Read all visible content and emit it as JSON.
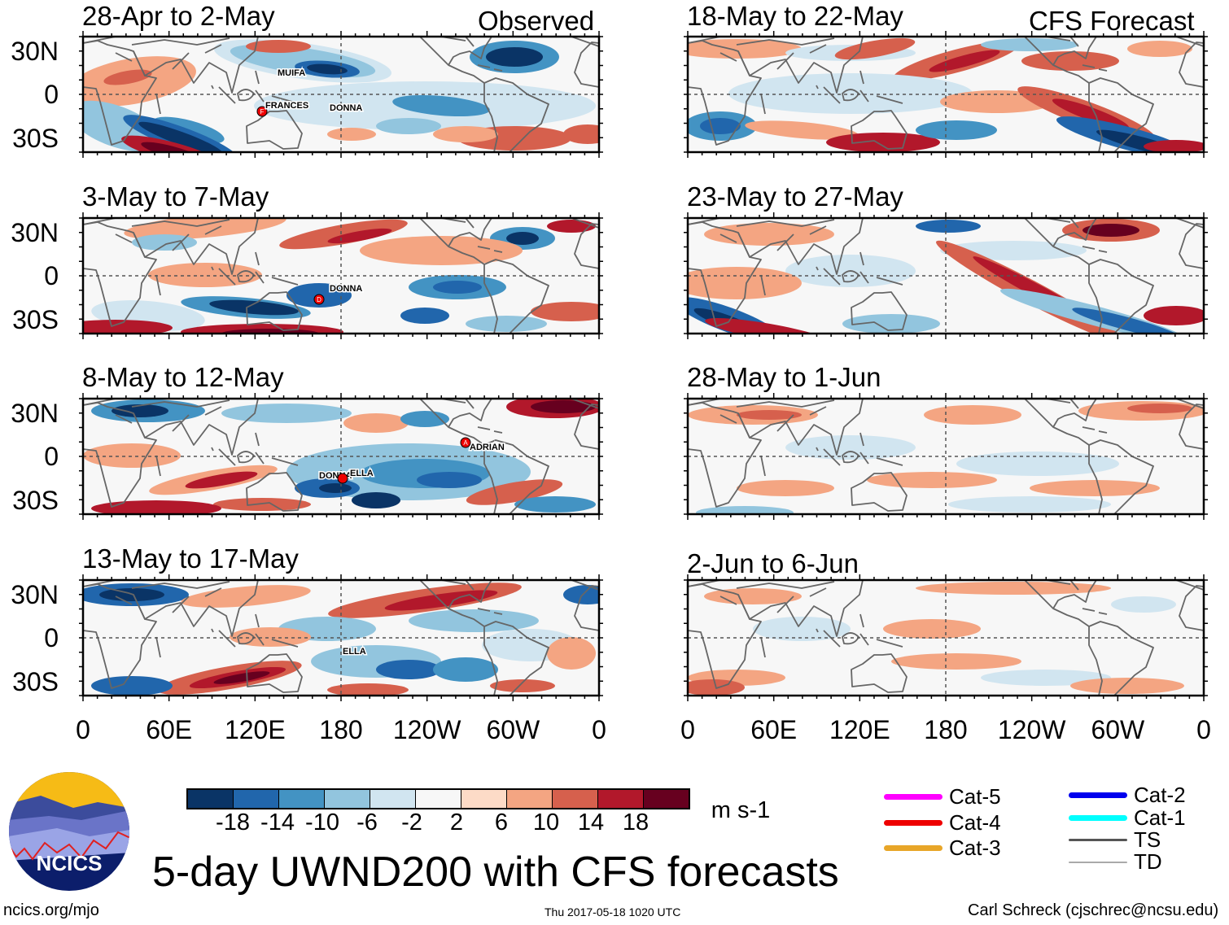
{
  "observed_label": "Observed",
  "forecast_label": "CFS Forecast",
  "panels": [
    {
      "title": "28-Apr to 2-May",
      "storms": [
        {
          "name": "MUIFA"
        },
        {
          "name": "FRANCES",
          "marker": "F"
        },
        {
          "name": "DONNA"
        }
      ]
    },
    {
      "title": "3-May to 7-May",
      "storms": [
        {
          "name": "DONNA",
          "marker": "D"
        }
      ]
    },
    {
      "title": "8-May to 12-May",
      "storms": [
        {
          "name": "ADRIAN",
          "marker": "A"
        },
        {
          "name": "DONNA"
        },
        {
          "name": "ELLA"
        }
      ]
    },
    {
      "title": "13-May to 17-May",
      "storms": [
        {
          "name": "ELLA"
        }
      ]
    },
    {
      "title": "18-May to 22-May"
    },
    {
      "title": "23-May to 27-May"
    },
    {
      "title": "28-May to 1-Jun"
    },
    {
      "title": "2-Jun to 6-Jun"
    }
  ],
  "lat_labels": [
    "30N",
    "0",
    "30S"
  ],
  "lon_labels": [
    "0",
    "60E",
    "120E",
    "180",
    "120W",
    "60W",
    "0"
  ],
  "colorbar": {
    "colors": [
      "#0a3466",
      "#2166ac",
      "#4393c3",
      "#92c5de",
      "#d1e5f0",
      "#f7f7f7",
      "#fddbc7",
      "#f4a582",
      "#d6604d",
      "#b2182b",
      "#67001f"
    ],
    "labels": [
      "-18",
      "-14",
      "-10",
      "-6",
      "-2",
      "2",
      "6",
      "10",
      "14",
      "18"
    ],
    "units": "m s-1"
  },
  "legend": [
    {
      "label": "Cat-5",
      "color": "#ff00ff"
    },
    {
      "label": "Cat-4",
      "color": "#ee0000"
    },
    {
      "label": "Cat-3",
      "color": "#e8a628"
    },
    {
      "label": "Cat-2",
      "color": "#0000ee"
    },
    {
      "label": "Cat-1",
      "color": "#00ffff"
    },
    {
      "label": "TS",
      "color": "#555555"
    },
    {
      "label": "TD",
      "color": "#aaaaaa"
    }
  ],
  "logo_text": "NCICS",
  "main_title": "5-day UWND200 with CFS forecasts",
  "footer": {
    "left": "ncics.org/mjo",
    "center": "Thu 2017-05-18 1020 UTC",
    "right": "Carl Schreck (cjschrec@ncsu.edu)"
  }
}
